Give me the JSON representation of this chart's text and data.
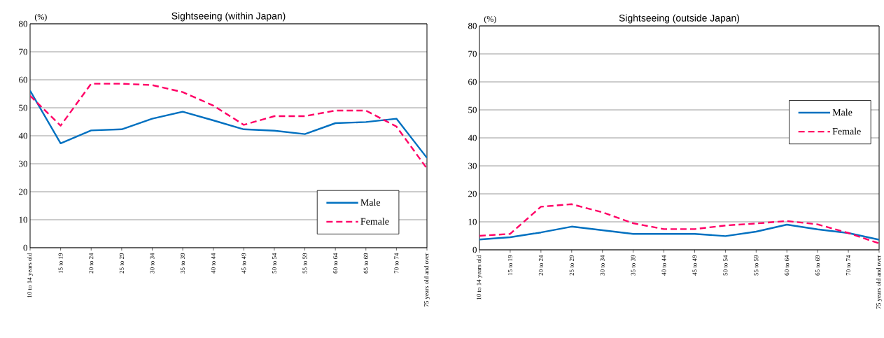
{
  "chart_data": [
    {
      "type": "line",
      "title": "Sightseeing (within Japan)",
      "ylabel": "(%)",
      "categories": [
        "10 to 14 years old",
        "15 to 19",
        "20 to 24",
        "25 to 29",
        "30 to 34",
        "35 to 39",
        "40 to 44",
        "45 to 49",
        "50 to 54",
        "55 to 59",
        "60 to 64",
        "65 to 69",
        "70 to 74",
        "75 years old and over"
      ],
      "series": [
        {
          "name": "Male",
          "color": "#0070c0",
          "line_style": "solid",
          "values": [
            56.1,
            37.3,
            41.9,
            42.3,
            46.1,
            48.6,
            45.5,
            42.3,
            41.8,
            40.6,
            44.5,
            44.9,
            46.1,
            32.1
          ]
        },
        {
          "name": "Female",
          "color": "#ff0066",
          "line_style": "dashed",
          "values": [
            54.3,
            43.6,
            58.6,
            58.6,
            58.1,
            55.6,
            50.8,
            43.9,
            47.0,
            47.0,
            49.0,
            49.0,
            43.3,
            28.3
          ]
        }
      ],
      "ylim": [
        0,
        80
      ],
      "yticks": [
        0,
        10,
        20,
        30,
        40,
        50,
        60,
        70,
        80
      ],
      "grid": "y",
      "legend": "bottom right"
    },
    {
      "type": "line",
      "title": "Sightseeing (outside Japan)",
      "ylabel": "(%)",
      "categories": [
        "10 to 14 years old",
        "15 to 19",
        "20 to 24",
        "25 to 29",
        "30 to 34",
        "35 to 39",
        "40 to 44",
        "45 to 49",
        "50 to 54",
        "55 to 59",
        "60 to 64",
        "65 to 69",
        "70 to 74",
        "75 years old and over"
      ],
      "series": [
        {
          "name": "Male",
          "color": "#0070c0",
          "line_style": "solid",
          "values": [
            3.7,
            4.5,
            6.2,
            8.3,
            7.0,
            5.7,
            5.7,
            5.7,
            4.9,
            6.5,
            9.0,
            7.3,
            6.0,
            3.6
          ]
        },
        {
          "name": "Female",
          "color": "#ff0066",
          "line_style": "dashed",
          "values": [
            5.0,
            5.7,
            15.4,
            16.3,
            13.4,
            9.5,
            7.4,
            7.4,
            8.7,
            9.4,
            10.3,
            9.1,
            6.0,
            2.3
          ]
        }
      ],
      "ylim": [
        0,
        80
      ],
      "yticks": [
        0,
        10,
        20,
        30,
        40,
        50,
        60,
        70,
        80
      ],
      "grid": "y",
      "legend": "right"
    }
  ]
}
